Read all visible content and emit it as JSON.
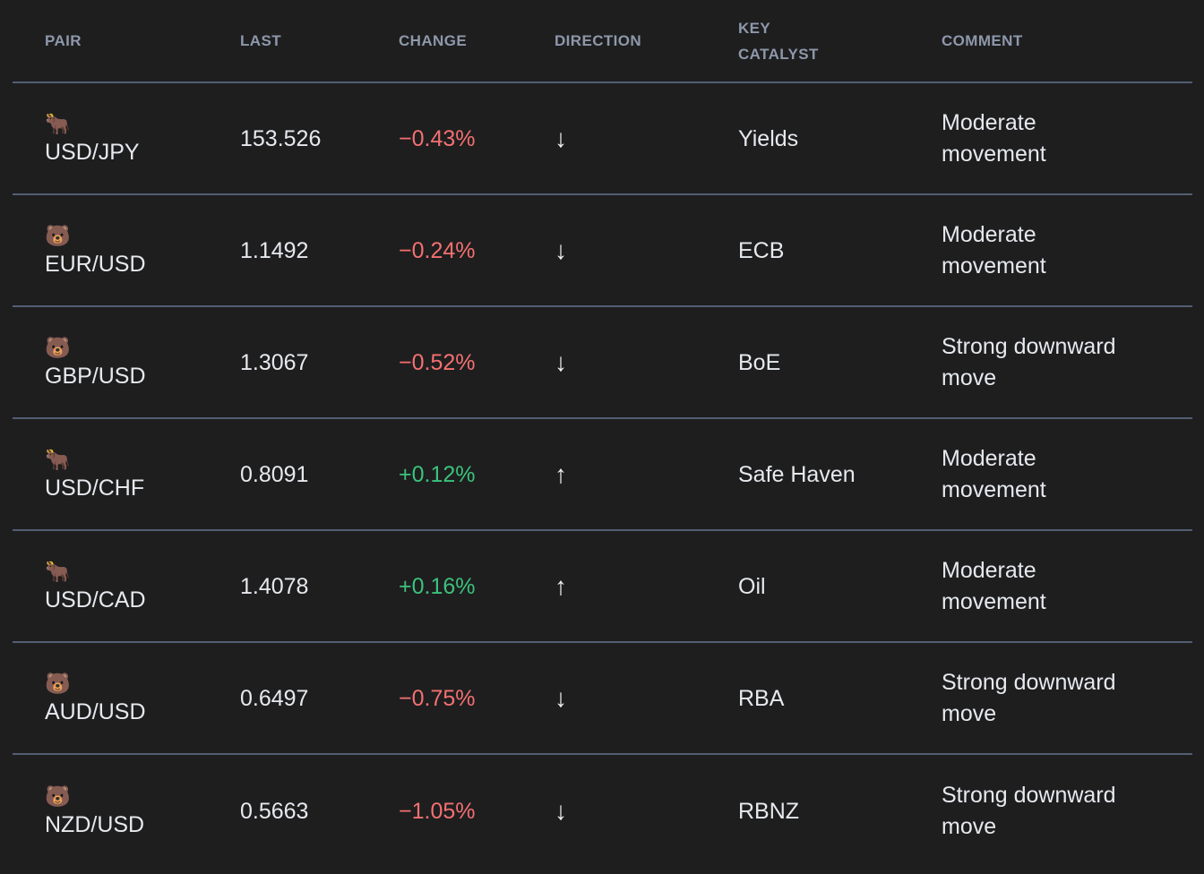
{
  "colors": {
    "background": "#1e1e1f",
    "divider": "#535e72",
    "header_text": "#8e98aa",
    "body_text": "#e6e9ed",
    "negative": "#f47070",
    "positive": "#3bc27b"
  },
  "table": {
    "columns": [
      {
        "key": "pair",
        "label": "PAIR"
      },
      {
        "key": "last",
        "label": "LAST"
      },
      {
        "key": "change",
        "label": "CHANGE"
      },
      {
        "key": "direction",
        "label": "DIRECTION"
      },
      {
        "key": "catalyst",
        "label": "KEY CATALYST"
      },
      {
        "key": "comment",
        "label": "COMMENT"
      }
    ],
    "rows": [
      {
        "emoji": "🐂",
        "sentiment": "bull",
        "pair": "USD/JPY",
        "last": "153.526",
        "change": "−0.43%",
        "trend": "down",
        "arrow": "↓",
        "catalyst": "Yields",
        "comment": "Moderate movement"
      },
      {
        "emoji": "🐻",
        "sentiment": "bear",
        "pair": "EUR/USD",
        "last": "1.1492",
        "change": "−0.24%",
        "trend": "down",
        "arrow": "↓",
        "catalyst": "ECB",
        "comment": "Moderate movement"
      },
      {
        "emoji": "🐻",
        "sentiment": "bear",
        "pair": "GBP/USD",
        "last": "1.3067",
        "change": "−0.52%",
        "trend": "down",
        "arrow": "↓",
        "catalyst": "BoE",
        "comment": "Strong downward move"
      },
      {
        "emoji": "🐂",
        "sentiment": "bull",
        "pair": "USD/CHF",
        "last": "0.8091",
        "change": "+0.12%",
        "trend": "up",
        "arrow": "↑",
        "catalyst": "Safe Haven",
        "comment": "Moderate movement"
      },
      {
        "emoji": "🐂",
        "sentiment": "bull",
        "pair": "USD/CAD",
        "last": "1.4078",
        "change": "+0.16%",
        "trend": "up",
        "arrow": "↑",
        "catalyst": "Oil",
        "comment": "Moderate movement"
      },
      {
        "emoji": "🐻",
        "sentiment": "bear",
        "pair": "AUD/USD",
        "last": "0.6497",
        "change": "−0.75%",
        "trend": "down",
        "arrow": "↓",
        "catalyst": "RBA",
        "comment": "Strong downward move"
      },
      {
        "emoji": "🐻",
        "sentiment": "bear",
        "pair": "NZD/USD",
        "last": "0.5663",
        "change": "−1.05%",
        "trend": "down",
        "arrow": "↓",
        "catalyst": "RBNZ",
        "comment": "Strong downward move"
      }
    ]
  }
}
